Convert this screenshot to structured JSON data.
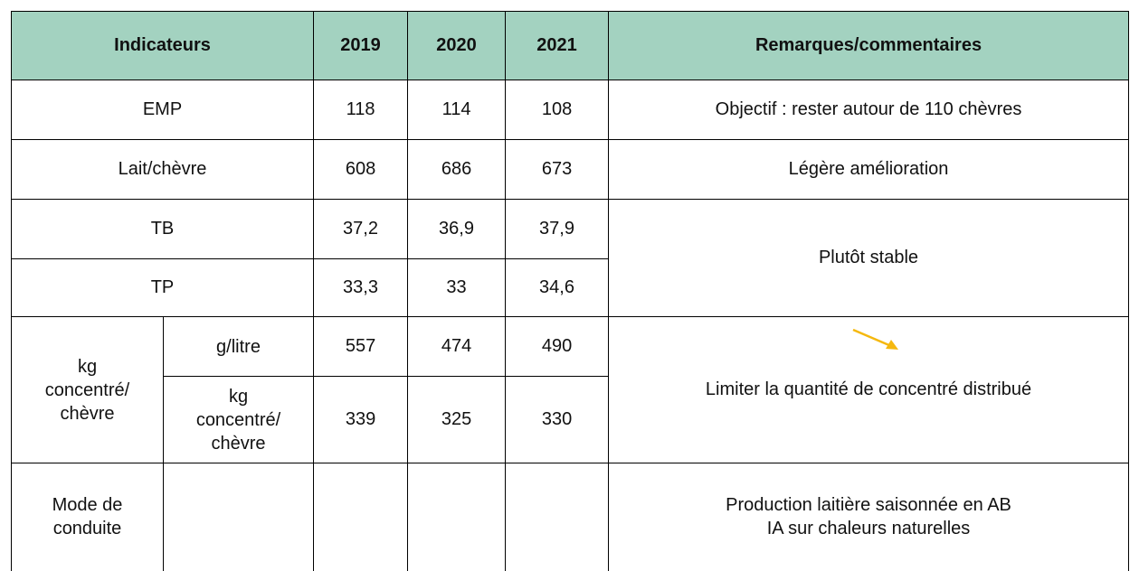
{
  "table": {
    "header": [
      "Indicateurs",
      "2019",
      "2020",
      "2021",
      "Remarques/commentaires"
    ],
    "rows": [
      {
        "label": "EMP",
        "values": [
          "118",
          "114",
          "108"
        ],
        "remark": "Objectif : rester autour de 110 chèvres"
      },
      {
        "label": "Lait/chèvre",
        "values": [
          "608",
          "686",
          "673"
        ],
        "remark": "Légère amélioration"
      },
      {
        "label": "TB",
        "values": [
          "37,2",
          "36,9",
          "37,9"
        ],
        "remark": "Plutôt stable"
      },
      {
        "label": "TP",
        "values": [
          "33,3",
          "33",
          "34,6"
        ]
      },
      {
        "group": [
          "kg",
          "concentré/",
          "chèvre"
        ],
        "label": [
          "g/litre"
        ],
        "values": [
          "557",
          "474",
          "490"
        ],
        "remark": "Limiter la quantité de concentré distribué"
      },
      {
        "label": [
          "kg",
          "concentré/",
          "chèvre"
        ],
        "values": [
          "339",
          "325",
          "330"
        ]
      },
      {
        "label": [
          "Mode de",
          "conduite"
        ],
        "remark": [
          "Production laitière saisonnée en AB",
          "IA sur chaleurs naturelles"
        ]
      }
    ]
  }
}
